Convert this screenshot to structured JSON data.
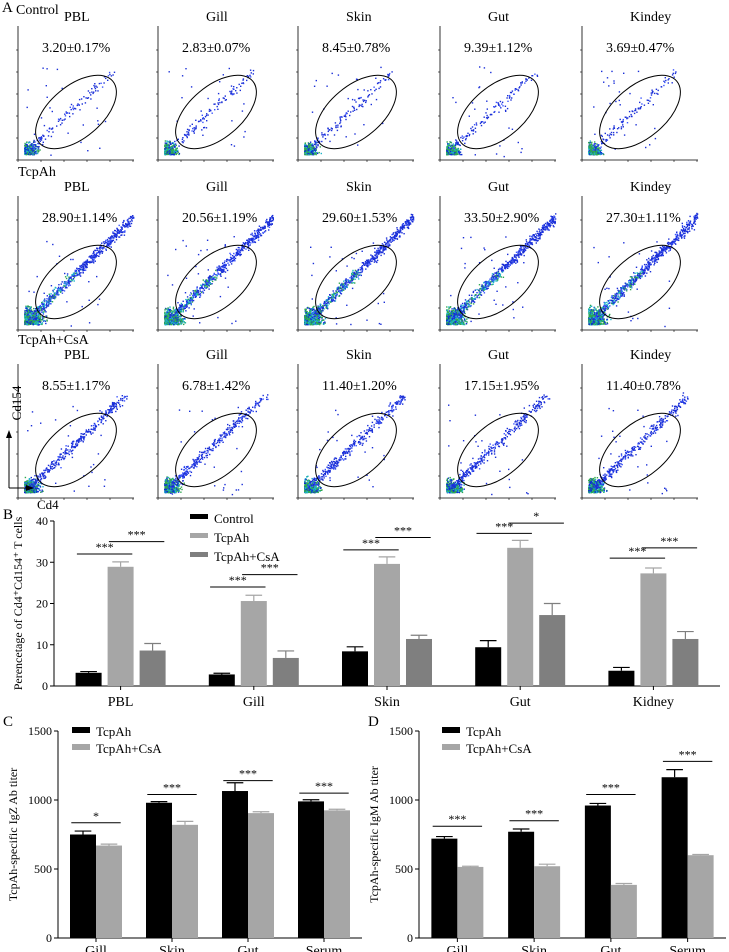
{
  "panelA": {
    "letter": "A",
    "rows": [
      {
        "label": "Control",
        "panels": [
          {
            "tissue": "PBL",
            "pct": "3.20±0.17%",
            "intensity": 1
          },
          {
            "tissue": "Gill",
            "pct": "2.83±0.07%",
            "intensity": 1
          },
          {
            "tissue": "Skin",
            "pct": "8.45±0.78%",
            "intensity": 1
          },
          {
            "tissue": "Gut",
            "pct": "9.39±1.12%",
            "intensity": 1
          },
          {
            "tissue": "Kindey",
            "pct": "3.69±0.47%",
            "intensity": 1
          }
        ]
      },
      {
        "label": "TcpAh",
        "panels": [
          {
            "tissue": "PBL",
            "pct": "28.90±1.14%",
            "intensity": 3
          },
          {
            "tissue": "Gill",
            "pct": "20.56±1.19%",
            "intensity": 3
          },
          {
            "tissue": "Skin",
            "pct": "29.60±1.53%",
            "intensity": 3
          },
          {
            "tissue": "Gut",
            "pct": "33.50±2.90%",
            "intensity": 3
          },
          {
            "tissue": "Kindey",
            "pct": "27.30±1.11%",
            "intensity": 3
          }
        ]
      },
      {
        "label": "TcpAh+CsA",
        "panels": [
          {
            "tissue": "PBL",
            "pct": "8.55±1.17%",
            "intensity": 2
          },
          {
            "tissue": "Gill",
            "pct": "6.78±1.42%",
            "intensity": 2
          },
          {
            "tissue": "Skin",
            "pct": "11.40±1.20%",
            "intensity": 2
          },
          {
            "tissue": "Gut",
            "pct": "17.15±1.95%",
            "intensity": 2
          },
          {
            "tissue": "Kindey",
            "pct": "11.40±0.78%",
            "intensity": 2
          }
        ]
      }
    ],
    "y_axis_label": "Cd154",
    "x_axis_label": "Cd4"
  },
  "letters": {
    "B": "B",
    "C": "C",
    "D": "D"
  },
  "chart_data": [
    {
      "type": "bar",
      "panel": "B",
      "categories": [
        "PBL",
        "Gill",
        "Skin",
        "Gut",
        "Kidney"
      ],
      "ylabel": "Perencetage of Cd4⁺Cd154⁺ T cells",
      "ylim": [
        0,
        40
      ],
      "yticks": [
        0,
        10,
        20,
        30,
        40
      ],
      "legend": "top-center",
      "series": [
        {
          "name": "Control",
          "color": "#000000",
          "values": [
            3.2,
            2.8,
            8.4,
            9.4,
            3.7
          ],
          "errors": [
            0.3,
            0.3,
            1.1,
            1.6,
            0.8
          ]
        },
        {
          "name": "TcpAh",
          "color": "#a6a6a6",
          "values": [
            28.9,
            20.6,
            29.6,
            33.5,
            27.3
          ],
          "errors": [
            1.2,
            1.4,
            1.7,
            1.8,
            1.3
          ]
        },
        {
          "name": "TcpAh+CsA",
          "color": "#7f7f7f",
          "values": [
            8.6,
            6.8,
            11.4,
            17.2,
            11.4
          ],
          "errors": [
            1.7,
            1.7,
            0.9,
            2.8,
            1.8
          ]
        }
      ],
      "significance": [
        {
          "category": 0,
          "from": 0,
          "to": 1,
          "label": "***",
          "y": 32
        },
        {
          "category": 0,
          "from": 1,
          "to": 2,
          "label": "***",
          "y": 35
        },
        {
          "category": 1,
          "from": 0,
          "to": 1,
          "label": "***",
          "y": 24
        },
        {
          "category": 1,
          "from": 1,
          "to": 2,
          "label": "***",
          "y": 27
        },
        {
          "category": 2,
          "from": 0,
          "to": 1,
          "label": "***",
          "y": 33
        },
        {
          "category": 2,
          "from": 1,
          "to": 2,
          "label": "***",
          "y": 36
        },
        {
          "category": 3,
          "from": 0,
          "to": 1,
          "label": "***",
          "y": 37
        },
        {
          "category": 3,
          "from": 1,
          "to": 2,
          "label": "*",
          "y": 39.5
        },
        {
          "category": 4,
          "from": 0,
          "to": 1,
          "label": "***",
          "y": 31
        },
        {
          "category": 4,
          "from": 1,
          "to": 2,
          "label": "***",
          "y": 33.5
        }
      ]
    },
    {
      "type": "bar",
      "panel": "C",
      "categories": [
        "Gill",
        "Skin",
        "Gut",
        "Serum"
      ],
      "ylabel": "TcpAh-specific IgZ Ab titer",
      "ylim": [
        0,
        1500
      ],
      "yticks": [
        0,
        500,
        1000,
        1500
      ],
      "legend": "top-left",
      "series": [
        {
          "name": "TcpAh",
          "color": "#000000",
          "values": [
            750,
            980,
            1065,
            990
          ],
          "errors": [
            25,
            8,
            60,
            12
          ]
        },
        {
          "name": "TcpAh+CsA",
          "color": "#a6a6a6",
          "values": [
            670,
            820,
            905,
            925
          ],
          "errors": [
            10,
            25,
            10,
            8
          ]
        }
      ],
      "significance": [
        {
          "category": 0,
          "label": "*",
          "y": 835
        },
        {
          "category": 1,
          "label": "***",
          "y": 1040
        },
        {
          "category": 2,
          "label": "***",
          "y": 1140
        },
        {
          "category": 3,
          "label": "***",
          "y": 1050
        }
      ]
    },
    {
      "type": "bar",
      "panel": "D",
      "categories": [
        "Gill",
        "Skin",
        "Gut",
        "Serum"
      ],
      "ylabel": "TcpAh-specific IgM Ab titer",
      "ylim": [
        0,
        1500
      ],
      "yticks": [
        0,
        500,
        1000,
        1500
      ],
      "legend": "top-left",
      "series": [
        {
          "name": "TcpAh",
          "color": "#000000",
          "values": [
            720,
            770,
            960,
            1165
          ],
          "errors": [
            15,
            20,
            15,
            55
          ]
        },
        {
          "name": "TcpAh+CsA",
          "color": "#a6a6a6",
          "values": [
            515,
            520,
            385,
            600
          ],
          "errors": [
            5,
            15,
            10,
            5
          ]
        }
      ],
      "significance": [
        {
          "category": 0,
          "label": "***",
          "y": 810
        },
        {
          "category": 1,
          "label": "***",
          "y": 850
        },
        {
          "category": 2,
          "label": "***",
          "y": 1040
        },
        {
          "category": 3,
          "label": "***",
          "y": 1280
        }
      ]
    }
  ]
}
